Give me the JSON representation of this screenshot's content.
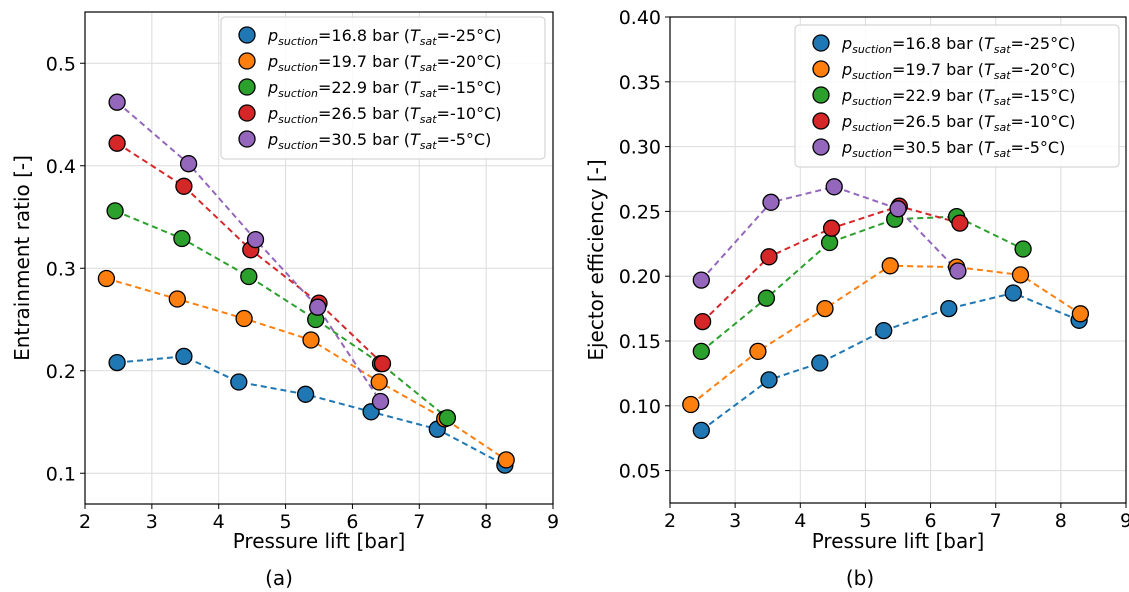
{
  "legend_entries": [
    {
      "sub_a": "suction",
      "pressure": "=16.8 bar (",
      "sub_b": "sat",
      "temp": "=-25°C)"
    },
    {
      "sub_a": "suction",
      "pressure": "=19.7 bar (",
      "sub_b": "sat",
      "temp": "=-20°C)"
    },
    {
      "sub_a": "suction",
      "pressure": "=22.9 bar (",
      "sub_b": "sat",
      "temp": "=-15°C)"
    },
    {
      "sub_a": "suction",
      "pressure": "=26.5 bar (",
      "sub_b": "sat",
      "temp": "=-10°C)"
    },
    {
      "sub_a": "suction",
      "pressure": "=30.5 bar (",
      "sub_b": "sat",
      "temp": "=-5°C)"
    }
  ],
  "colors": [
    "#1f77b4",
    "#ff7f0e",
    "#2ca02c",
    "#d62728",
    "#9467bd"
  ],
  "chart_data": [
    {
      "type": "line",
      "panel_label": "(a)",
      "xlabel": "Pressure lift [bar]",
      "ylabel": "Entrainment ratio [-]",
      "xlim": [
        2,
        9
      ],
      "ylim": [
        0.07,
        0.55
      ],
      "xticks": [
        2,
        3,
        4,
        5,
        6,
        7,
        8,
        9
      ],
      "yticks": [
        0.1,
        0.2,
        0.3,
        0.4,
        0.5
      ],
      "ytick_labels": [
        "0.1",
        "0.2",
        "0.3",
        "0.4",
        "0.5"
      ],
      "grid": true,
      "legend_position": "top-right",
      "series": [
        {
          "name": "p_suction=16.8 bar (T_sat=-25°C)",
          "x": [
            2.48,
            3.48,
            4.3,
            5.3,
            6.28,
            7.27,
            8.28
          ],
          "y": [
            0.208,
            0.214,
            0.189,
            0.177,
            0.16,
            0.143,
            0.108
          ]
        },
        {
          "name": "p_suction=19.7 bar (T_sat=-20°C)",
          "x": [
            2.32,
            3.38,
            4.38,
            5.38,
            6.4,
            7.38,
            8.3
          ],
          "y": [
            0.29,
            0.27,
            0.251,
            0.23,
            0.189,
            0.153,
            0.113
          ]
        },
        {
          "name": "p_suction=22.9 bar (T_sat=-15°C)",
          "x": [
            2.45,
            3.45,
            4.45,
            5.45,
            6.42,
            7.42
          ],
          "y": [
            0.356,
            0.329,
            0.292,
            0.25,
            0.207,
            0.154
          ]
        },
        {
          "name": "p_suction=26.5 bar (T_sat=-10°C)",
          "x": [
            2.48,
            3.48,
            4.48,
            5.5,
            6.45
          ],
          "y": [
            0.422,
            0.38,
            0.318,
            0.266,
            0.207
          ]
        },
        {
          "name": "p_suction=30.5 bar (T_sat=-5°C)",
          "x": [
            2.48,
            3.55,
            4.55,
            5.48,
            6.42
          ],
          "y": [
            0.462,
            0.402,
            0.328,
            0.262,
            0.17
          ]
        }
      ]
    },
    {
      "type": "line",
      "panel_label": "(b)",
      "xlabel": "Pressure lift [bar]",
      "ylabel": "Ejector efficiency [-]",
      "xlim": [
        2,
        9
      ],
      "ylim": [
        0.025,
        0.4
      ],
      "xticks": [
        2,
        3,
        4,
        5,
        6,
        7,
        8,
        9
      ],
      "yticks": [
        0.05,
        0.1,
        0.15,
        0.2,
        0.25,
        0.3,
        0.35,
        0.4
      ],
      "ytick_labels": [
        "0.05",
        "0.10",
        "0.15",
        "0.20",
        "0.25",
        "0.30",
        "0.35",
        "0.40"
      ],
      "grid": true,
      "legend_position": "top-right",
      "series": [
        {
          "name": "p_suction=16.8 bar (T_sat=-25°C)",
          "x": [
            2.48,
            3.52,
            4.3,
            5.28,
            6.28,
            7.27,
            8.28
          ],
          "y": [
            0.081,
            0.12,
            0.133,
            0.158,
            0.175,
            0.187,
            0.166
          ]
        },
        {
          "name": "p_suction=19.7 bar (T_sat=-20°C)",
          "x": [
            2.32,
            3.35,
            4.38,
            5.38,
            6.4,
            7.38,
            8.3
          ],
          "y": [
            0.101,
            0.142,
            0.175,
            0.208,
            0.207,
            0.201,
            0.171
          ]
        },
        {
          "name": "p_suction=22.9 bar (T_sat=-15°C)",
          "x": [
            2.48,
            3.48,
            4.45,
            5.45,
            6.4,
            7.42
          ],
          "y": [
            0.142,
            0.183,
            0.226,
            0.244,
            0.246,
            0.221
          ]
        },
        {
          "name": "p_suction=26.5 bar (T_sat=-10°C)",
          "x": [
            2.5,
            3.52,
            4.48,
            5.52,
            6.45
          ],
          "y": [
            0.165,
            0.215,
            0.237,
            0.254,
            0.241
          ]
        },
        {
          "name": "p_suction=30.5 bar (T_sat=-5°C)",
          "x": [
            2.48,
            3.55,
            4.52,
            5.5,
            6.42
          ],
          "y": [
            0.197,
            0.257,
            0.269,
            0.252,
            0.204
          ]
        }
      ]
    }
  ]
}
